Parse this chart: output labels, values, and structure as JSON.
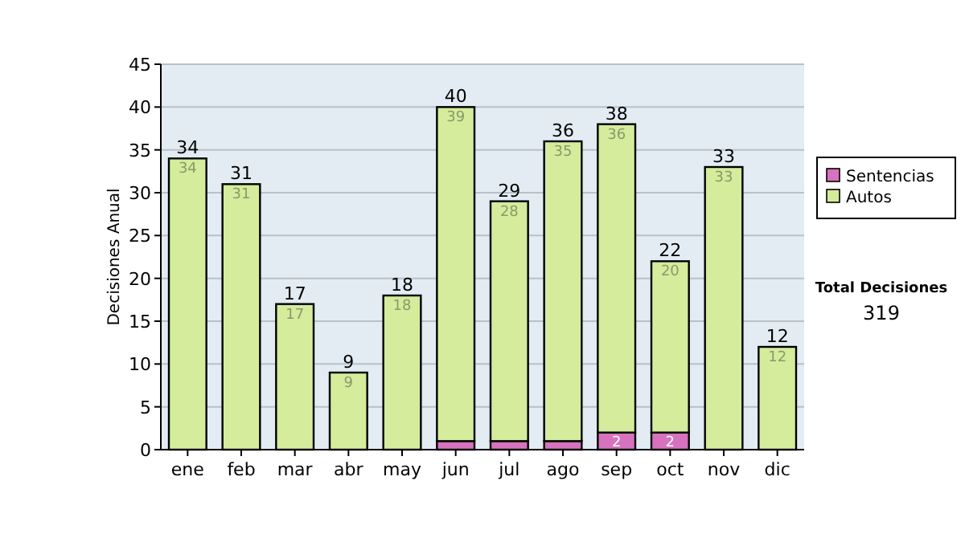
{
  "chart_data": {
    "type": "bar",
    "stacked": true,
    "ylabel": "Decisiones Anual",
    "categories": [
      "ene",
      "feb",
      "mar",
      "abr",
      "may",
      "jun",
      "jul",
      "ago",
      "sep",
      "oct",
      "nov",
      "dic"
    ],
    "series": [
      {
        "name": "Sentencias",
        "color": "#d672be",
        "values": [
          0,
          0,
          0,
          0,
          0,
          1,
          1,
          1,
          2,
          2,
          0,
          0
        ],
        "value_labels": [
          null,
          null,
          null,
          null,
          null,
          null,
          null,
          null,
          "2",
          "2",
          null,
          null
        ]
      },
      {
        "name": "Autos",
        "color": "#d4ec9c",
        "values": [
          34,
          31,
          17,
          9,
          18,
          39,
          28,
          35,
          36,
          20,
          33,
          12
        ],
        "value_labels": [
          "34",
          "31",
          "17",
          "9",
          "18",
          "39",
          "28",
          "35",
          "36",
          "20",
          "33",
          "12"
        ]
      }
    ],
    "totals": [
      "34",
      "31",
      "17",
      "9",
      "18",
      "40",
      "29",
      "36",
      "38",
      "22",
      "33",
      "12"
    ],
    "ylim": [
      0,
      45
    ],
    "yticks": [
      0,
      5,
      10,
      15,
      20,
      25,
      30,
      35,
      40,
      45
    ],
    "grid": "y",
    "legend": "right",
    "annotations": [
      "Total Decisiones",
      "319"
    ]
  }
}
